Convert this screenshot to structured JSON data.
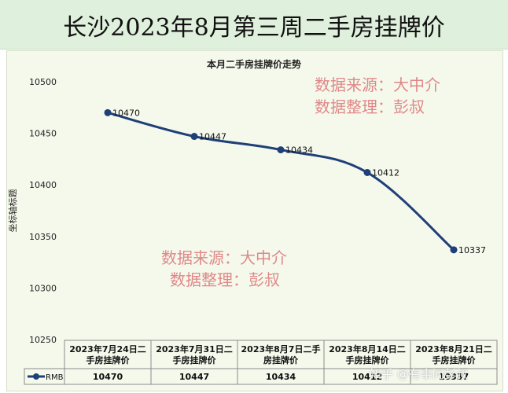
{
  "banner": {
    "title": "长沙2023年8月第三周二手房挂牌价"
  },
  "overlays": {
    "top_line1": "数据来源：大中介",
    "top_line2": "数据整理：彭叔",
    "mid_line1": "数据来源：大中介",
    "mid_line2": "数据整理：彭叔"
  },
  "watermark": "知乎 @有事问彭叔",
  "colors": {
    "line": "#1f3f78",
    "banner_bg": "#dff0dc",
    "plot_bg": "#f5f9ec",
    "overlay": "#e08888"
  },
  "chart_data": {
    "type": "line",
    "title": "本月二手房挂牌价走势",
    "xlabel": "",
    "ylabel": "坐标轴标题",
    "ylim": [
      10250,
      10500
    ],
    "yticks": [
      10250,
      10300,
      10350,
      10400,
      10450,
      10500
    ],
    "grid": false,
    "categories": [
      "2023年7月24日二手房挂牌价",
      "2023年7月31日二手房挂牌价",
      "2023年8月7日二手房挂牌价",
      "2023年8月14日二手房挂牌价",
      "2023年8月21日二手房挂牌价"
    ],
    "series": [
      {
        "name": "RMB",
        "values": [
          10470,
          10447,
          10434,
          10412,
          10337
        ]
      }
    ],
    "data_table": true
  }
}
